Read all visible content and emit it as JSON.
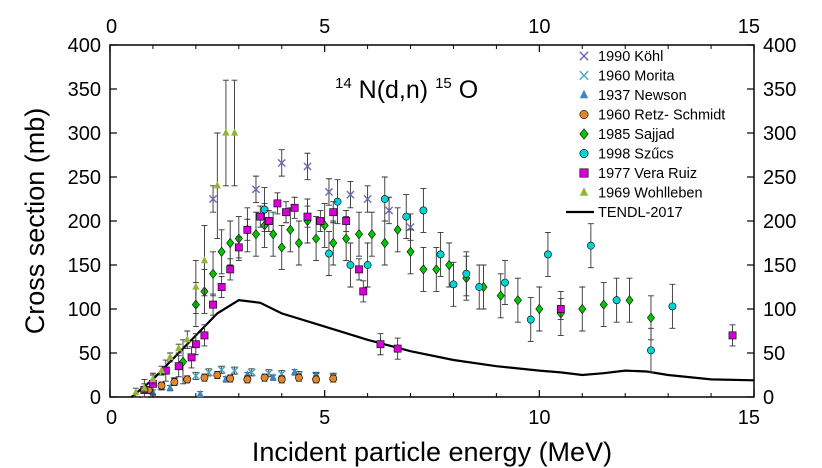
{
  "chart_data": {
    "type": "scatter",
    "title_main": "N(d,n)",
    "title_sup_a": "14",
    "title_sup_b": "15",
    "title_tail": "O",
    "xlabel": "Incident particle energy (MeV)",
    "ylabel": "Cross section (mb)",
    "xlim": [
      0,
      15
    ],
    "ylim": [
      0,
      400
    ],
    "x_ticks": [
      "0",
      "5",
      "10",
      "15"
    ],
    "y_ticks": [
      "0",
      "50",
      "100",
      "150",
      "200",
      "250",
      "300",
      "350",
      "400"
    ],
    "legend_position": "top-right",
    "series": [
      {
        "name": "1990 Köhl",
        "marker": "x",
        "color": "#6b6bb4",
        "x": [
          2.4,
          3.4,
          4.0,
          4.6,
          5.1,
          5.6,
          6.0,
          6.5,
          7.0
        ],
        "y": [
          225,
          236,
          266,
          262,
          233,
          230,
          225,
          212,
          193
        ],
        "err": [
          15,
          15,
          15,
          15,
          15,
          15,
          15,
          15,
          15
        ]
      },
      {
        "name": "1960 Morita",
        "marker": "x",
        "color": "#4aa3bf",
        "x": [
          1.2,
          1.5,
          2.0,
          2.3,
          2.6,
          2.9,
          3.3,
          3.7,
          4.0,
          4.4,
          4.8,
          5.2
        ],
        "y": [
          12,
          18,
          24,
          28,
          31,
          30,
          28,
          27,
          26,
          25,
          24,
          23
        ],
        "err": [
          4,
          4,
          4,
          4,
          4,
          4,
          4,
          4,
          4,
          4,
          4,
          4
        ]
      },
      {
        "name": "1937 Newson",
        "marker": "triangle",
        "color": "#3a87c4",
        "x": [
          1.0,
          1.4,
          2.1,
          2.7,
          3.2,
          3.8,
          4.3,
          4.8
        ],
        "y": [
          5,
          10,
          3,
          20,
          25,
          22,
          28,
          24
        ],
        "err": [
          3,
          3,
          3,
          3,
          3,
          3,
          3,
          3
        ]
      },
      {
        "name": "1960 Retz- Schmidt",
        "marker": "circle",
        "color": "#e3872f",
        "x": [
          0.9,
          1.2,
          1.5,
          1.8,
          2.2,
          2.5,
          2.8,
          3.2,
          3.6,
          4.0,
          4.4,
          4.8,
          5.2
        ],
        "y": [
          8,
          13,
          17,
          20,
          22,
          25,
          21,
          20,
          22,
          20,
          22,
          20,
          21
        ],
        "err": [
          4,
          4,
          4,
          4,
          4,
          4,
          4,
          4,
          4,
          4,
          4,
          4,
          4
        ]
      },
      {
        "name": "1985 Sajjad",
        "marker": "diamond",
        "color": "#00c800",
        "x": [
          1.7,
          2.0,
          2.2,
          2.4,
          2.6,
          2.8,
          3.0,
          3.2,
          3.4,
          3.6,
          3.8,
          4.0,
          4.2,
          4.4,
          4.6,
          4.8,
          5.0,
          5.2,
          5.5,
          5.8,
          6.1,
          6.4,
          6.7,
          7.0,
          7.3,
          7.6,
          7.9,
          8.3,
          8.7,
          9.1,
          9.5,
          10.0,
          10.5,
          11.0,
          11.5,
          12.1,
          12.6
        ],
        "y": [
          40,
          105,
          120,
          140,
          165,
          175,
          180,
          190,
          185,
          195,
          185,
          170,
          190,
          175,
          200,
          180,
          195,
          175,
          180,
          185,
          185,
          175,
          190,
          165,
          145,
          145,
          150,
          135,
          125,
          115,
          110,
          100,
          95,
          100,
          105,
          110,
          90
        ],
        "err": [
          25,
          25,
          25,
          25,
          25,
          25,
          25,
          25,
          25,
          25,
          25,
          25,
          25,
          25,
          25,
          25,
          25,
          25,
          25,
          25,
          25,
          25,
          25,
          25,
          25,
          25,
          25,
          25,
          25,
          25,
          25,
          25,
          25,
          25,
          25,
          25,
          25
        ]
      },
      {
        "name": "1998 Szűcs",
        "marker": "circle",
        "color": "#00d4d4",
        "x": [
          3.6,
          5.1,
          5.3,
          5.6,
          6.0,
          6.4,
          6.9,
          7.3,
          7.7,
          8.0,
          8.3,
          8.6,
          9.2,
          9.8,
          10.2,
          11.2,
          11.8,
          12.6,
          13.1
        ],
        "y": [
          213,
          163,
          222,
          150,
          150,
          225,
          205,
          212,
          162,
          128,
          140,
          125,
          130,
          88,
          162,
          172,
          110,
          53,
          103
        ],
        "err": [
          25,
          25,
          25,
          25,
          25,
          25,
          25,
          25,
          25,
          25,
          25,
          25,
          25,
          25,
          25,
          25,
          25,
          25,
          25
        ]
      },
      {
        "name": "1977 Vera Ruiz",
        "marker": "square",
        "color": "#d600d6",
        "x": [
          0.8,
          1.0,
          1.3,
          1.6,
          1.9,
          2.0,
          2.2,
          2.4,
          2.6,
          2.8,
          3.0,
          3.2,
          3.5,
          3.7,
          3.9,
          4.1,
          4.3,
          4.6,
          4.9,
          5.2,
          5.5,
          5.8,
          5.9,
          6.3,
          6.7,
          10.5,
          14.5
        ],
        "y": [
          8,
          15,
          30,
          35,
          45,
          60,
          70,
          105,
          125,
          145,
          170,
          190,
          205,
          200,
          220,
          210,
          215,
          205,
          200,
          210,
          200,
          145,
          120,
          60,
          55,
          100,
          70
        ],
        "err": [
          12,
          12,
          12,
          12,
          12,
          12,
          12,
          12,
          12,
          12,
          12,
          12,
          12,
          12,
          12,
          12,
          12,
          12,
          12,
          12,
          12,
          12,
          12,
          12,
          12,
          12,
          12
        ]
      },
      {
        "name": "1969 Wohlleben",
        "marker": "triangle",
        "color": "#8fb832",
        "x": [
          0.6,
          0.8,
          1.0,
          1.2,
          1.4,
          1.6,
          1.8,
          2.0,
          2.2,
          2.5,
          2.7,
          2.9
        ],
        "y": [
          5,
          10,
          20,
          30,
          45,
          55,
          65,
          125,
          155,
          240,
          300,
          300
        ],
        "err": [
          5,
          5,
          5,
          5,
          5,
          5,
          10,
          30,
          40,
          60,
          60,
          60
        ]
      },
      {
        "name": "TENDL-2017",
        "marker": "line",
        "color": "#000000",
        "x": [
          0.5,
          1.0,
          1.5,
          2.0,
          2.5,
          3.0,
          3.5,
          4.0,
          5.0,
          6.0,
          7.0,
          8.0,
          9.0,
          10.0,
          10.5,
          11.0,
          11.5,
          12.0,
          12.5,
          13.0,
          14.0,
          15.0
        ],
        "y": [
          0,
          20,
          45,
          70,
          95,
          110,
          107,
          95,
          80,
          65,
          52,
          42,
          35,
          30,
          28,
          25,
          27,
          30,
          29,
          25,
          20,
          19
        ]
      }
    ]
  }
}
